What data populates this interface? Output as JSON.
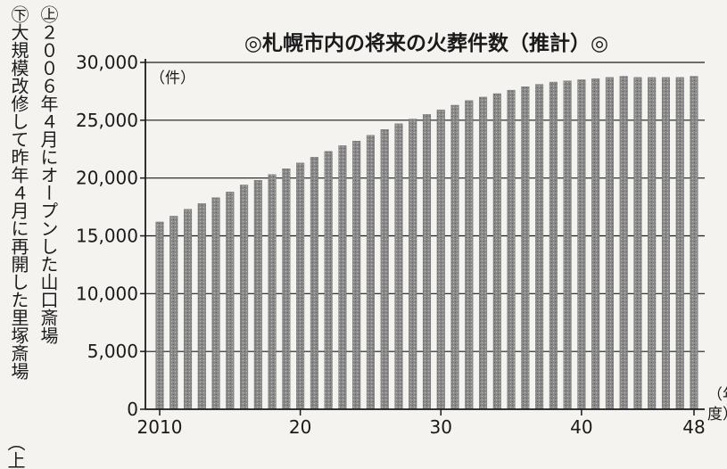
{
  "caption": {
    "line1": "㊤２００６年４月にオープンした山口斎場",
    "line2": "㊦大規模改修して昨年４月に再開した里塚斎場",
    "tail": "（上"
  },
  "chart_data": {
    "type": "bar",
    "title": "◎札幌市内の将来の火葬件数（推計）◎",
    "ylabel": "（件）",
    "xlabel": "（年度）",
    "ylim": [
      0,
      30000
    ],
    "yticks": [
      0,
      5000,
      10000,
      15000,
      20000,
      25000,
      30000
    ],
    "ytick_labels": [
      "0",
      "5,000",
      "10,000",
      "15,000",
      "20,000",
      "25,000",
      "30,000"
    ],
    "xtick_positions": [
      2010,
      2020,
      2030,
      2040,
      2048
    ],
    "xtick_labels": [
      "2010",
      "20",
      "30",
      "40",
      "48"
    ],
    "grid": true,
    "categories": [
      2010,
      2011,
      2012,
      2013,
      2014,
      2015,
      2016,
      2017,
      2018,
      2019,
      2020,
      2021,
      2022,
      2023,
      2024,
      2025,
      2026,
      2027,
      2028,
      2029,
      2030,
      2031,
      2032,
      2033,
      2034,
      2035,
      2036,
      2037,
      2038,
      2039,
      2040,
      2041,
      2042,
      2043,
      2044,
      2045,
      2046,
      2047,
      2048
    ],
    "values": [
      16200,
      16700,
      17300,
      17800,
      18300,
      18800,
      19400,
      19800,
      20300,
      20800,
      21300,
      21800,
      22300,
      22800,
      23200,
      23700,
      24200,
      24700,
      25100,
      25500,
      25900,
      26300,
      26700,
      27000,
      27300,
      27600,
      27900,
      28100,
      28300,
      28400,
      28500,
      28600,
      28700,
      28800,
      28700,
      28700,
      28700,
      28700,
      28800
    ],
    "colors": {
      "bar": "#8a8a8a",
      "bar_edge": "#6e6e6e",
      "axis": "#1a1a1a",
      "grid": "#1a1a1a"
    }
  }
}
